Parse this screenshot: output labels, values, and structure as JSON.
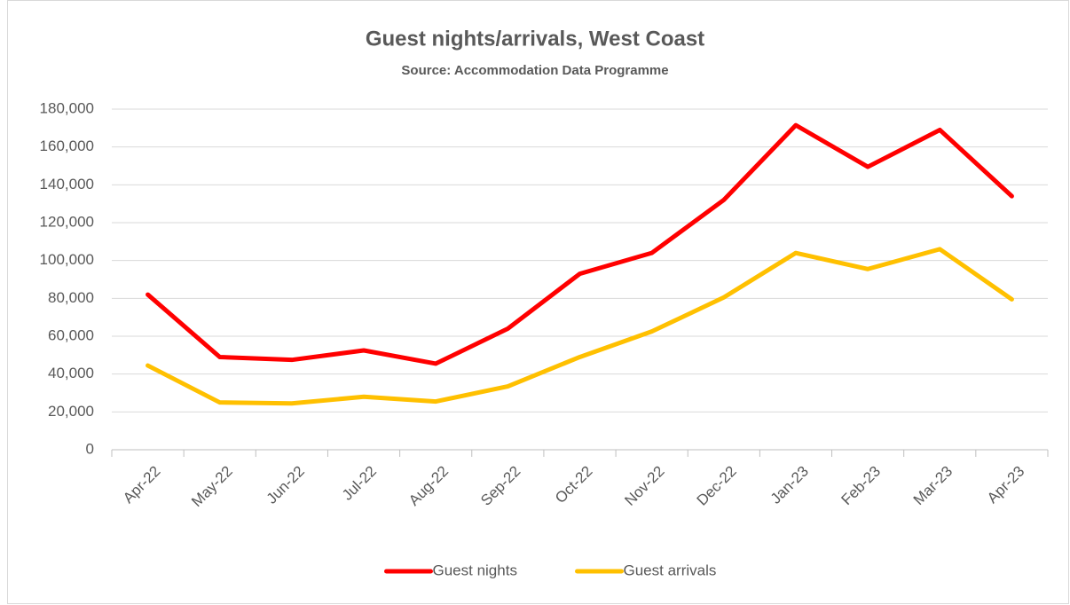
{
  "chart_data": {
    "type": "line",
    "title": "Guest nights/arrivals, West Coast",
    "subtitle": "Source: Accommodation Data Programme",
    "categories": [
      "Apr-22",
      "May-22",
      "Jun-22",
      "Jul-22",
      "Aug-22",
      "Sep-22",
      "Oct-22",
      "Nov-22",
      "Dec-22",
      "Jan-23",
      "Feb-23",
      "Mar-23",
      "Apr-23"
    ],
    "series": [
      {
        "name": "Guest nights",
        "color": "#ff0000",
        "values": [
          82000,
          49000,
          47500,
          52500,
          45500,
          64000,
          93000,
          104000,
          132000,
          171500,
          149500,
          169000,
          134000
        ]
      },
      {
        "name": "Guest arrivals",
        "color": "#ffc000",
        "values": [
          44500,
          25000,
          24500,
          28000,
          25500,
          33500,
          49000,
          62500,
          80500,
          104000,
          95500,
          106000,
          79500
        ]
      }
    ],
    "ylim": [
      0,
      180000
    ],
    "yticks": [
      0,
      {
        "value": 20000,
        "label": "20,000"
      },
      {
        "value": 40000,
        "label": "40,000"
      },
      {
        "value": 60000,
        "label": "60,000"
      },
      {
        "value": 80000,
        "label": "80,000"
      },
      {
        "value": 100000,
        "label": "100,000"
      },
      {
        "value": 120000,
        "label": "120,000"
      },
      {
        "value": 140000,
        "label": "140,000"
      },
      {
        "value": 160000,
        "label": "160,000"
      },
      {
        "value": 180000,
        "label": "180,000"
      }
    ],
    "grid": true,
    "legend": "bottom"
  }
}
